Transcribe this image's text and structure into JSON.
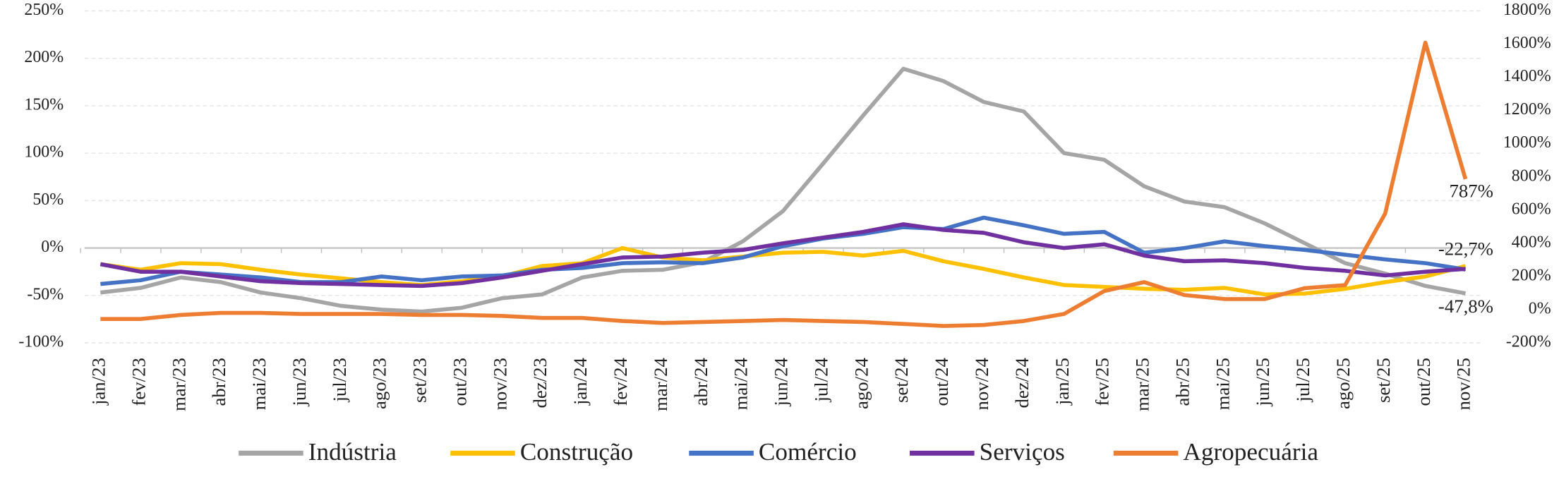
{
  "chart_data": {
    "type": "line",
    "categories": [
      "jan/23",
      "fev/23",
      "mar/23",
      "abr/23",
      "mai/23",
      "jun/23",
      "jul/23",
      "ago/23",
      "set/23",
      "out/23",
      "nov/23",
      "dez/23",
      "jan/24",
      "fev/24",
      "mar/24",
      "abr/24",
      "mai/24",
      "jun/24",
      "jul/24",
      "ago/24",
      "set/24",
      "out/24",
      "nov/24",
      "dez/24",
      "jan/25",
      "fev/25",
      "mar/25",
      "abr/25",
      "mai/25",
      "jun/25",
      "jul/25",
      "ago/25",
      "set/25",
      "out/25",
      "nov/25"
    ],
    "series": [
      {
        "name": "Indústria",
        "color": "#a5a5a5",
        "values": [
          -47,
          -42,
          -31,
          -36,
          -47,
          -53,
          -61,
          -65,
          -67,
          -63,
          -53,
          -49,
          -31,
          -24,
          -23,
          -15,
          7,
          39,
          89,
          140,
          189,
          176,
          154,
          144,
          100,
          93,
          65,
          49,
          43,
          26,
          5,
          -16,
          -27,
          -40,
          -47.8
        ],
        "value_labels": [
          null,
          null,
          null,
          null,
          null,
          null,
          null,
          null,
          null,
          null,
          null,
          null,
          null,
          null,
          null,
          null,
          null,
          null,
          null,
          null,
          null,
          null,
          null,
          null,
          null,
          null,
          null,
          null,
          null,
          null,
          null,
          null,
          null,
          null,
          "-47,8%"
        ]
      },
      {
        "name": "Construção",
        "color": "#ffc000",
        "values": [
          -17,
          -23,
          -16,
          -17,
          -23,
          -28,
          -32,
          -36,
          -39,
          -35,
          -30,
          -19,
          -16,
          0,
          -10,
          -13,
          -9,
          -5,
          -4,
          -8,
          -3,
          -14,
          -22,
          -31,
          -39,
          -41,
          -43,
          -44,
          -42,
          -49,
          -48,
          -43,
          -36,
          -30,
          -19
        ]
      },
      {
        "name": "Comércio",
        "color": "#4472c4",
        "values": [
          -38,
          -34,
          -25,
          -28,
          -31,
          -36,
          -36,
          -30,
          -34,
          -30,
          -29,
          -23,
          -21,
          -16,
          -15,
          -16,
          -10,
          2,
          10,
          15,
          22,
          20,
          32,
          24,
          15,
          17,
          -5,
          0,
          7,
          2,
          -2,
          -7,
          -12,
          -16,
          -22.7
        ],
        "value_labels": [
          null,
          null,
          null,
          null,
          null,
          null,
          null,
          null,
          null,
          null,
          null,
          null,
          null,
          null,
          null,
          null,
          null,
          null,
          null,
          null,
          null,
          null,
          null,
          null,
          null,
          null,
          null,
          null,
          null,
          null,
          null,
          null,
          null,
          null,
          "-22,7%"
        ]
      },
      {
        "name": "Serviços",
        "color": "#7030a0",
        "values": [
          -17,
          -25,
          -25,
          -30,
          -35,
          -37,
          -38,
          -39,
          -40,
          -37,
          -31,
          -24,
          -17,
          -10,
          -9,
          -5,
          -2,
          5,
          11,
          17,
          25,
          19,
          16,
          6,
          0,
          4,
          -8,
          -14,
          -13,
          -16,
          -21,
          -24,
          -29,
          -25,
          -22
        ]
      },
      {
        "name": "Agropecuária",
        "color": "#ed7d31",
        "axis": "y2",
        "values": [
          -56,
          -56,
          -32,
          -20,
          -20,
          -26,
          -26,
          -26,
          -32,
          -32,
          -38,
          -50,
          -50,
          -68,
          -80,
          -74,
          -68,
          -62,
          -68,
          -74,
          -86,
          -98,
          -92,
          -68,
          -26,
          112,
          166,
          88,
          64,
          64,
          130,
          148,
          579,
          1609,
          787
        ],
        "value_labels": [
          null,
          null,
          null,
          null,
          null,
          null,
          null,
          null,
          null,
          null,
          null,
          null,
          null,
          null,
          null,
          null,
          null,
          null,
          null,
          null,
          null,
          null,
          null,
          null,
          null,
          null,
          null,
          null,
          null,
          null,
          null,
          null,
          null,
          null,
          "787%"
        ]
      }
    ],
    "ylim": [
      -100,
      250
    ],
    "yticks": [
      {
        "value": -100,
        "label": "-100%"
      },
      {
        "value": -50,
        "label": "-50%"
      },
      {
        "value": 0,
        "label": "0%"
      },
      {
        "value": 50,
        "label": "50%"
      },
      {
        "value": 100,
        "label": "100%"
      },
      {
        "value": 150,
        "label": "150%"
      },
      {
        "value": 200,
        "label": "200%"
      },
      {
        "value": 250,
        "label": "250%"
      }
    ],
    "y2lim": [
      -200,
      1800
    ],
    "y2ticks": [
      {
        "value": -200,
        "label": "-200%"
      },
      {
        "value": 0,
        "label": "0%"
      },
      {
        "value": 200,
        "label": "200%"
      },
      {
        "value": 400,
        "label": "400%"
      },
      {
        "value": 600,
        "label": "600%"
      },
      {
        "value": 800,
        "label": "800%"
      },
      {
        "value": 1000,
        "label": "1000%"
      },
      {
        "value": 1200,
        "label": "1200%"
      },
      {
        "value": 1400,
        "label": "1400%"
      },
      {
        "value": 1600,
        "label": "1600%"
      },
      {
        "value": 1800,
        "label": "1800%"
      }
    ],
    "grid": true,
    "legend": "bottom"
  }
}
